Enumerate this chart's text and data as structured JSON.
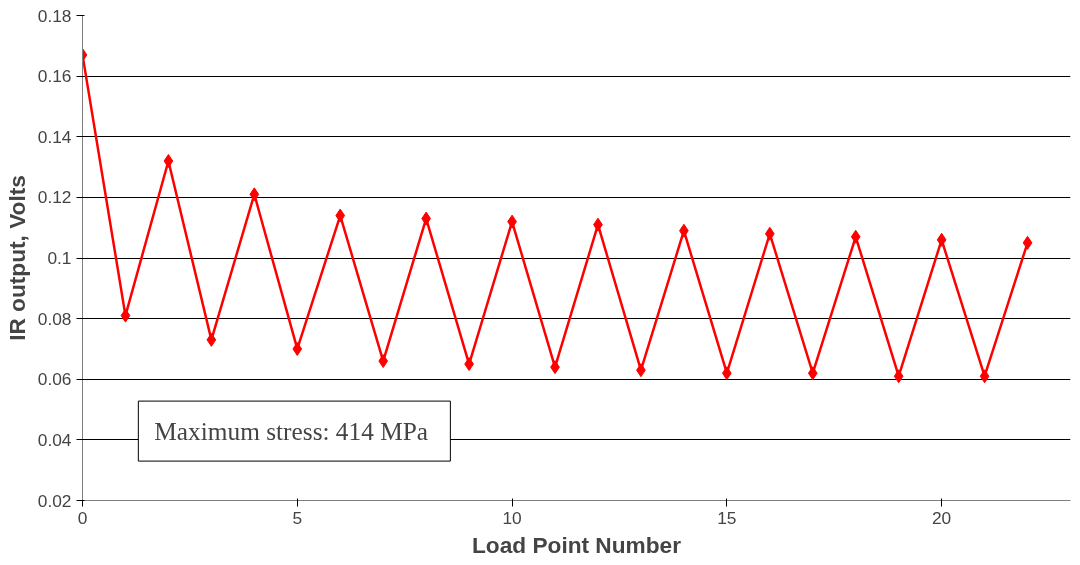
{
  "chart_data": {
    "type": "line",
    "xlabel": "Load Point Number",
    "ylabel": "IR output, Volts",
    "x": [
      0,
      1,
      2,
      3,
      4,
      5,
      6,
      7,
      8,
      9,
      10,
      11,
      12,
      13,
      14,
      15,
      16,
      17,
      18,
      19,
      20,
      21,
      22
    ],
    "series": [
      {
        "color": "#ff0000",
        "values": [
          0.167,
          0.081,
          0.132,
          0.073,
          0.121,
          0.07,
          0.114,
          0.066,
          0.113,
          0.065,
          0.112,
          0.064,
          0.111,
          0.063,
          0.109,
          0.062,
          0.108,
          0.062,
          0.107,
          0.061,
          0.106,
          0.061,
          0.105
        ]
      }
    ],
    "xlim": [
      0,
      23
    ],
    "xticks": [
      0,
      5,
      10,
      15,
      20
    ],
    "ylim": [
      0.02,
      0.18
    ],
    "yticks": [
      0.02,
      0.04,
      0.06,
      0.08,
      {
        "value": 0.1,
        "label": "0.1"
      },
      0.12,
      0.14,
      0.16,
      0.18
    ],
    "grid": "y",
    "marker": "diamond",
    "line_style": "solid",
    "annotations": [
      "Maximum stress:  414 MPa"
    ]
  }
}
